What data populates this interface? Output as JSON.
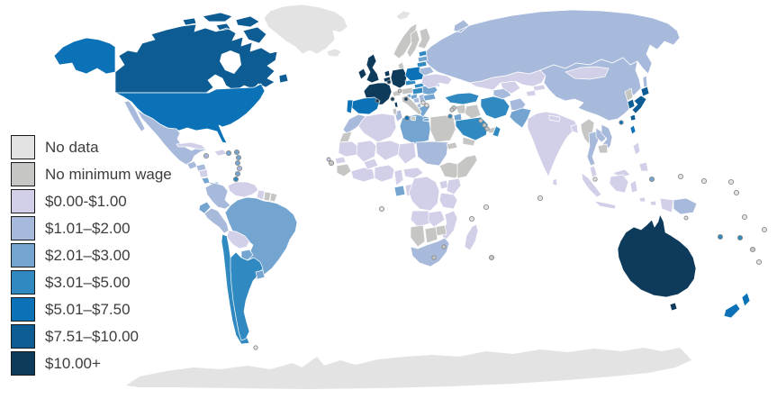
{
  "legend": {
    "items": [
      {
        "id": "no-data",
        "label": "No data",
        "color": "#e3e3e3"
      },
      {
        "id": "no-min",
        "label": "No minimum wage",
        "color": "#c6c6c4"
      },
      {
        "id": "c0",
        "label": "$0.00-$1.00",
        "color": "#d2d0e8"
      },
      {
        "id": "c1",
        "label": "$1.01–$2.00",
        "color": "#a8badc"
      },
      {
        "id": "c2",
        "label": "$2.01–$3.00",
        "color": "#74a5d1"
      },
      {
        "id": "c3",
        "label": "$3.01–$5.00",
        "color": "#3089c0"
      },
      {
        "id": "c4",
        "label": "$5.01–$7.50",
        "color": "#0b72b8"
      },
      {
        "id": "c5",
        "label": "$7.51–$10.00",
        "color": "#0e5c94"
      },
      {
        "id": "c6",
        "label": "$10.00+",
        "color": "#0e3a5c"
      }
    ]
  },
  "map": {
    "ocean_color": "#ffffff",
    "border_color": "#ffffff",
    "regions": [
      {
        "id": "antarctica",
        "name": "Antarctica",
        "category": "no-data"
      },
      {
        "id": "greenland",
        "name": "Greenland",
        "category": "no-data"
      },
      {
        "id": "iceland",
        "name": "Iceland",
        "category": "no-data"
      },
      {
        "id": "svalbard",
        "name": "Svalbard",
        "category": "no-data"
      },
      {
        "id": "russia",
        "name": "Russia",
        "category": "c1"
      },
      {
        "id": "canada",
        "name": "Canada",
        "category": "c5"
      },
      {
        "id": "hudson-bay",
        "name": "Hudson Bay",
        "category": "ocean"
      },
      {
        "id": "alaska",
        "name": "Alaska (United States)",
        "category": "c4"
      },
      {
        "id": "usa",
        "name": "United States",
        "category": "c4"
      },
      {
        "id": "mexico",
        "name": "Mexico",
        "category": "c1"
      },
      {
        "id": "guatemala",
        "name": "Guatemala",
        "category": "c1"
      },
      {
        "id": "honduras",
        "name": "Honduras",
        "category": "c1"
      },
      {
        "id": "nicaragua",
        "name": "Nicaragua",
        "category": "c0"
      },
      {
        "id": "costa-rica",
        "name": "Costa Rica",
        "category": "c2"
      },
      {
        "id": "panama",
        "name": "Panama",
        "category": "c2"
      },
      {
        "id": "cuba",
        "name": "Cuba",
        "category": "c0"
      },
      {
        "id": "hispaniola",
        "name": "Haiti / Dominican Republic",
        "category": "c0"
      },
      {
        "id": "colombia",
        "name": "Colombia",
        "category": "c1"
      },
      {
        "id": "venezuela",
        "name": "Venezuela",
        "category": "c0"
      },
      {
        "id": "guyana",
        "name": "Guyana",
        "category": "c0"
      },
      {
        "id": "suriname",
        "name": "Suriname",
        "category": "no-min"
      },
      {
        "id": "french-guiana",
        "name": "French Guiana",
        "category": "no-min"
      },
      {
        "id": "brazil",
        "name": "Brazil",
        "category": "c2"
      },
      {
        "id": "ecuador",
        "name": "Ecuador",
        "category": "c2"
      },
      {
        "id": "peru",
        "name": "Peru",
        "category": "c1"
      },
      {
        "id": "bolivia",
        "name": "Bolivia",
        "category": "c0"
      },
      {
        "id": "paraguay",
        "name": "Paraguay",
        "category": "c2"
      },
      {
        "id": "chile",
        "name": "Chile",
        "category": "c3"
      },
      {
        "id": "argentina",
        "name": "Argentina",
        "category": "c3"
      },
      {
        "id": "uruguay",
        "name": "Uruguay",
        "category": "c2"
      },
      {
        "id": "morocco",
        "name": "Morocco",
        "category": "c1"
      },
      {
        "id": "western-sahara",
        "name": "Western Sahara",
        "category": "no-min"
      },
      {
        "id": "algeria",
        "name": "Algeria",
        "category": "c0"
      },
      {
        "id": "tunisia",
        "name": "Tunisia",
        "category": "c1"
      },
      {
        "id": "libya",
        "name": "Libya",
        "category": "c2"
      },
      {
        "id": "egypt",
        "name": "Egypt",
        "category": "no-min"
      },
      {
        "id": "mauritania",
        "name": "Mauritania",
        "category": "c0"
      },
      {
        "id": "mali",
        "name": "Mali",
        "category": "c0"
      },
      {
        "id": "niger",
        "name": "Niger",
        "category": "c0"
      },
      {
        "id": "chad",
        "name": "Chad",
        "category": "c0"
      },
      {
        "id": "sudan",
        "name": "Sudan",
        "category": "c1"
      },
      {
        "id": "eritrea",
        "name": "Eritrea",
        "category": "no-min"
      },
      {
        "id": "ethiopia",
        "name": "Ethiopia",
        "category": "no-min"
      },
      {
        "id": "somalia",
        "name": "Somalia",
        "category": "no-min"
      },
      {
        "id": "senegal",
        "name": "Senegal",
        "category": "c0"
      },
      {
        "id": "guinea",
        "name": "Guinea / Sierra Leone",
        "category": "no-min"
      },
      {
        "id": "ivory-ghana",
        "name": "Côte d'Ivoire / Ghana",
        "category": "c0"
      },
      {
        "id": "burkina",
        "name": "Burkina Faso",
        "category": "c0"
      },
      {
        "id": "nigeria",
        "name": "Nigeria",
        "category": "c0"
      },
      {
        "id": "cameroon",
        "name": "Cameroon",
        "category": "c0"
      },
      {
        "id": "car",
        "name": "Central African Republic",
        "category": "c0"
      },
      {
        "id": "gabon",
        "name": "Gabon",
        "category": "c2"
      },
      {
        "id": "congo",
        "name": "Congo",
        "category": "c0"
      },
      {
        "id": "drc",
        "name": "DR Congo",
        "category": "c0"
      },
      {
        "id": "uganda",
        "name": "Uganda",
        "category": "c0"
      },
      {
        "id": "kenya",
        "name": "Kenya",
        "category": "c0"
      },
      {
        "id": "tanzania",
        "name": "Tanzania",
        "category": "c0"
      },
      {
        "id": "angola",
        "name": "Angola",
        "category": "c0"
      },
      {
        "id": "zambia",
        "name": "Zambia",
        "category": "c0"
      },
      {
        "id": "mozambique",
        "name": "Mozambique",
        "category": "c0"
      },
      {
        "id": "zimbabwe",
        "name": "Zimbabwe",
        "category": "no-min"
      },
      {
        "id": "namibia",
        "name": "Namibia",
        "category": "no-min"
      },
      {
        "id": "botswana",
        "name": "Botswana",
        "category": "no-min"
      },
      {
        "id": "south-africa",
        "name": "South Africa",
        "category": "c1"
      },
      {
        "id": "madagascar",
        "name": "Madagascar",
        "category": "c0"
      },
      {
        "id": "ireland",
        "name": "Ireland",
        "category": "c6"
      },
      {
        "id": "uk",
        "name": "United Kingdom",
        "category": "c6"
      },
      {
        "id": "norway",
        "name": "Norway",
        "category": "no-min"
      },
      {
        "id": "sweden",
        "name": "Sweden",
        "category": "no-min"
      },
      {
        "id": "finland",
        "name": "Finland",
        "category": "no-min"
      },
      {
        "id": "denmark",
        "name": "Denmark",
        "category": "no-min"
      },
      {
        "id": "estonia",
        "name": "Estonia",
        "category": "c3"
      },
      {
        "id": "latvia",
        "name": "Latvia",
        "category": "c2"
      },
      {
        "id": "lithuania",
        "name": "Lithuania",
        "category": "c3"
      },
      {
        "id": "netherlands",
        "name": "Netherlands",
        "category": "c6"
      },
      {
        "id": "belgium",
        "name": "Belgium",
        "category": "c6"
      },
      {
        "id": "germany",
        "name": "Germany",
        "category": "c6"
      },
      {
        "id": "france",
        "name": "France",
        "category": "c6"
      },
      {
        "id": "corsica",
        "name": "Corsica (France)",
        "category": "c6"
      },
      {
        "id": "spain",
        "name": "Spain",
        "category": "c4"
      },
      {
        "id": "portugal",
        "name": "Portugal",
        "category": "c4"
      },
      {
        "id": "switzerland",
        "name": "Switzerland",
        "category": "no-min"
      },
      {
        "id": "austria",
        "name": "Austria",
        "category": "no-min"
      },
      {
        "id": "czechia",
        "name": "Czechia",
        "category": "c3"
      },
      {
        "id": "poland",
        "name": "Poland",
        "category": "c4"
      },
      {
        "id": "slovakia",
        "name": "Slovakia",
        "category": "c3"
      },
      {
        "id": "hungary",
        "name": "Hungary",
        "category": "c3"
      },
      {
        "id": "slovenia",
        "name": "Slovenia",
        "category": "c2"
      },
      {
        "id": "croatia",
        "name": "Croatia",
        "category": "c2"
      },
      {
        "id": "bosnia",
        "name": "Bosnia and Herzegovina",
        "category": "c1"
      },
      {
        "id": "serbia",
        "name": "Serbia",
        "category": "c1"
      },
      {
        "id": "albania",
        "name": "Albania",
        "category": "c1"
      },
      {
        "id": "romania",
        "name": "Romania",
        "category": "c2"
      },
      {
        "id": "bulgaria",
        "name": "Bulgaria",
        "category": "c2"
      },
      {
        "id": "greece",
        "name": "Greece",
        "category": "c2"
      },
      {
        "id": "moldova",
        "name": "Moldova",
        "category": "c1"
      },
      {
        "id": "ukraine",
        "name": "Ukraine",
        "category": "c0"
      },
      {
        "id": "belarus",
        "name": "Belarus",
        "category": "c1"
      },
      {
        "id": "italy",
        "name": "Italy",
        "category": "no-min"
      },
      {
        "id": "sardinia",
        "name": "Sardinia (Italy)",
        "category": "no-min"
      },
      {
        "id": "turkey",
        "name": "Turkey",
        "category": "c3"
      },
      {
        "id": "syria",
        "name": "Syria",
        "category": "no-min"
      },
      {
        "id": "iraq",
        "name": "Iraq",
        "category": "no-min"
      },
      {
        "id": "jordan",
        "name": "Jordan",
        "category": "c2"
      },
      {
        "id": "saudi-arabia",
        "name": "Saudi Arabia",
        "category": "c3"
      },
      {
        "id": "uae",
        "name": "United Arab Emirates",
        "category": "no-min"
      },
      {
        "id": "oman",
        "name": "Oman",
        "category": "c3"
      },
      {
        "id": "yemen",
        "name": "Yemen",
        "category": "no-min"
      },
      {
        "id": "iran",
        "name": "Iran",
        "category": "c3"
      },
      {
        "id": "afghanistan",
        "name": "Afghanistan",
        "category": "c1"
      },
      {
        "id": "turkmenistan",
        "name": "Turkmenistan",
        "category": "c1"
      },
      {
        "id": "uzbekistan",
        "name": "Uzbekistan",
        "category": "c0"
      },
      {
        "id": "kazakhstan",
        "name": "Kazakhstan",
        "category": "c0"
      },
      {
        "id": "kyrgyzstan",
        "name": "Kyrgyzstan",
        "category": "c0"
      },
      {
        "id": "tajikistan",
        "name": "Tajikistan",
        "category": "c0"
      },
      {
        "id": "pakistan",
        "name": "Pakistan",
        "category": "c2"
      },
      {
        "id": "india",
        "name": "India",
        "category": "c0"
      },
      {
        "id": "nepal",
        "name": "Nepal",
        "category": "c0"
      },
      {
        "id": "bangladesh",
        "name": "Bangladesh",
        "category": "c0"
      },
      {
        "id": "sri-lanka",
        "name": "Sri Lanka",
        "category": "c0"
      },
      {
        "id": "china",
        "name": "China",
        "category": "c1"
      },
      {
        "id": "mongolia",
        "name": "Mongolia",
        "category": "c0"
      },
      {
        "id": "north-korea",
        "name": "North Korea",
        "category": "no-min"
      },
      {
        "id": "south-korea",
        "name": "South Korea",
        "category": "c5"
      },
      {
        "id": "japan",
        "name": "Japan",
        "category": "c5"
      },
      {
        "id": "taiwan",
        "name": "Taiwan",
        "category": "c4"
      },
      {
        "id": "myanmar",
        "name": "Myanmar",
        "category": "no-min"
      },
      {
        "id": "thailand",
        "name": "Thailand",
        "category": "c1"
      },
      {
        "id": "laos",
        "name": "Laos",
        "category": "c1"
      },
      {
        "id": "vietnam",
        "name": "Vietnam",
        "category": "c1"
      },
      {
        "id": "cambodia",
        "name": "Cambodia",
        "category": "no-min"
      },
      {
        "id": "malaysia",
        "name": "Malaysia",
        "category": "c0"
      },
      {
        "id": "malaysia-borneo",
        "name": "Malaysia (Borneo)",
        "category": "c0"
      },
      {
        "id": "indonesia",
        "name": "Indonesia",
        "category": "c0"
      },
      {
        "id": "philippines-luzon",
        "name": "Philippines (Luzon)",
        "category": "c0"
      },
      {
        "id": "philippines-mindanao",
        "name": "Philippines (Mindanao)",
        "category": "c0"
      },
      {
        "id": "png",
        "name": "Papua New Guinea",
        "category": "c1"
      },
      {
        "id": "australia",
        "name": "Australia",
        "category": "c6"
      },
      {
        "id": "tasmania",
        "name": "Tasmania (Australia)",
        "category": "c6"
      },
      {
        "id": "nz-north",
        "name": "New Zealand (North Island)",
        "category": "c4"
      },
      {
        "id": "nz-south",
        "name": "New Zealand (South Island)",
        "category": "c4"
      }
    ],
    "markers": [
      {
        "id": "jamaica",
        "name": "Jamaica",
        "category": "c1"
      },
      {
        "id": "puerto-rico",
        "name": "Puerto Rico",
        "category": "c2"
      },
      {
        "id": "antilles-1",
        "name": "Lesser Antilles",
        "category": "c2"
      },
      {
        "id": "antilles-2",
        "name": "Lesser Antilles",
        "category": "c2"
      },
      {
        "id": "antilles-3",
        "name": "Lesser Antilles",
        "category": "c2"
      },
      {
        "id": "antilles-4",
        "name": "Lesser Antilles",
        "category": "c1"
      },
      {
        "id": "antilles-5",
        "name": "Lesser Antilles",
        "category": "c2"
      },
      {
        "id": "trinidad",
        "name": "Trinidad and Tobago",
        "category": "c3"
      },
      {
        "id": "falklands",
        "name": "Falkland Islands",
        "category": "no-data"
      },
      {
        "id": "cape-verde",
        "name": "Cape Verde",
        "category": "no-min"
      },
      {
        "id": "gambia",
        "name": "Gambia",
        "category": "c0"
      },
      {
        "id": "sao-tome",
        "name": "São Tomé and Príncipe",
        "category": "no-data"
      },
      {
        "id": "lesotho",
        "name": "Lesotho",
        "category": "no-min"
      },
      {
        "id": "swaziland",
        "name": "Eswatini",
        "category": "no-min"
      },
      {
        "id": "comoros",
        "name": "Comoros",
        "category": "no-data"
      },
      {
        "id": "seychelles",
        "name": "Seychelles",
        "category": "no-data"
      },
      {
        "id": "mauritius",
        "name": "Mauritius",
        "category": "no-min"
      },
      {
        "id": "malta",
        "name": "Malta",
        "category": "c4"
      },
      {
        "id": "cyprus",
        "name": "Cyprus",
        "category": "no-min"
      },
      {
        "id": "balkan-1",
        "name": "Montenegro",
        "category": "no-data"
      },
      {
        "id": "balkan-2",
        "name": "North Macedonia",
        "category": "no-data"
      },
      {
        "id": "andorra",
        "name": "Andorra",
        "category": "c6"
      },
      {
        "id": "monaco",
        "name": "Monaco",
        "category": "c6"
      },
      {
        "id": "luxembourg",
        "name": "Luxembourg",
        "category": "c6"
      },
      {
        "id": "san-marino",
        "name": "San Marino",
        "category": "c6"
      },
      {
        "id": "liechtenstein",
        "name": "Liechtenstein",
        "category": "no-min"
      },
      {
        "id": "lebanon",
        "name": "Lebanon",
        "category": "no-min"
      },
      {
        "id": "israel",
        "name": "Israel",
        "category": "c3"
      },
      {
        "id": "kuwait",
        "name": "Kuwait",
        "category": "no-min"
      },
      {
        "id": "bahrain",
        "name": "Bahrain",
        "category": "no-min"
      },
      {
        "id": "qatar",
        "name": "Qatar",
        "category": "no-min"
      },
      {
        "id": "maldives",
        "name": "Maldives",
        "category": "no-data"
      },
      {
        "id": "singapore",
        "name": "Singapore",
        "category": "no-data"
      },
      {
        "id": "hong-kong",
        "name": "Hong Kong",
        "category": "c4"
      },
      {
        "id": "palau",
        "name": "Palau",
        "category": "c2"
      },
      {
        "id": "guam",
        "name": "Guam",
        "category": "no-data"
      },
      {
        "id": "micronesia",
        "name": "Micronesia",
        "category": "no-data"
      },
      {
        "id": "marshall",
        "name": "Marshall Islands",
        "category": "no-data"
      },
      {
        "id": "nauru",
        "name": "Nauru",
        "category": "no-data"
      },
      {
        "id": "kiribati",
        "name": "Kiribati",
        "category": "no-data"
      },
      {
        "id": "samoa",
        "name": "Samoa",
        "category": "no-data"
      },
      {
        "id": "solomon",
        "name": "Solomon Islands",
        "category": "c3"
      },
      {
        "id": "vanuatu",
        "name": "Vanuatu",
        "category": "c3"
      },
      {
        "id": "fiji",
        "name": "Fiji",
        "category": "no-min"
      },
      {
        "id": "tonga",
        "name": "Tonga",
        "category": "no-data"
      },
      {
        "id": "png-island",
        "name": "New Britain",
        "category": "no-data"
      }
    ]
  }
}
